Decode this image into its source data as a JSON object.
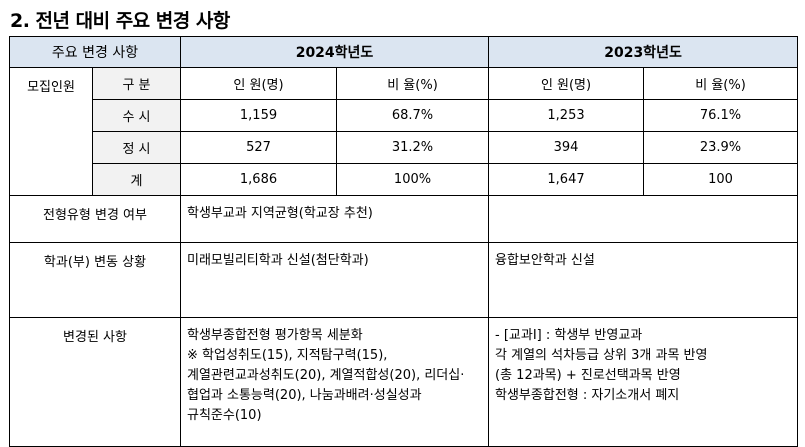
{
  "title": "2. 전년 대비 주요 변경 사항",
  "header": {
    "left": "주요 변경 사항",
    "year1": "2024학년도",
    "year2": "2023학년도"
  },
  "recruit": {
    "label": "모집인원",
    "col_type": "구 분",
    "col_count": "인 원(명)",
    "col_ratio": "비 율(%)",
    "rows": [
      {
        "type": "수 시",
        "y2024_count": "1,159",
        "y2024_ratio": "68.7%",
        "y2023_count": "1,253",
        "y2023_ratio": "76.1%"
      },
      {
        "type": "정 시",
        "y2024_count": "527",
        "y2024_ratio": "31.2%",
        "y2023_count": "394",
        "y2023_ratio": "23.9%"
      },
      {
        "type": "계",
        "y2024_count": "1,686",
        "y2024_ratio": "100%",
        "y2023_count": "1,647",
        "y2023_ratio": "100"
      }
    ]
  },
  "type_change": {
    "label": "전형유형 변경 여부",
    "y2024": "학생부교과 지역균형(학교장 추천)",
    "y2023": ""
  },
  "dept_change": {
    "label": "학과(부) 변동 상황",
    "y2024": "미래모빌리티학과 신설(첨단학과)",
    "y2023": "융합보안학과 신설"
  },
  "changes": {
    "label": "변경된 사항",
    "y2024_lines": [
      "학생부종합전형 평가항목 세분화",
      "※ 학업성취도(15), 지적탐구력(15),",
      "계열관련교과성취도(20), 계열적합성(20), 리더십·",
      "협업과 소통능력(20), 나눔과배려·성실성과",
      "규칙준수(10)"
    ],
    "y2023_lines": [
      "- [교과Ⅰ] : 학생부 반영교과",
      "각 계열의 석차등급 상위 3개 과목 반영",
      "(총 12과목) + 진로선택과목 반영",
      "학생부종합전형 : 자기소개서 폐지"
    ]
  }
}
